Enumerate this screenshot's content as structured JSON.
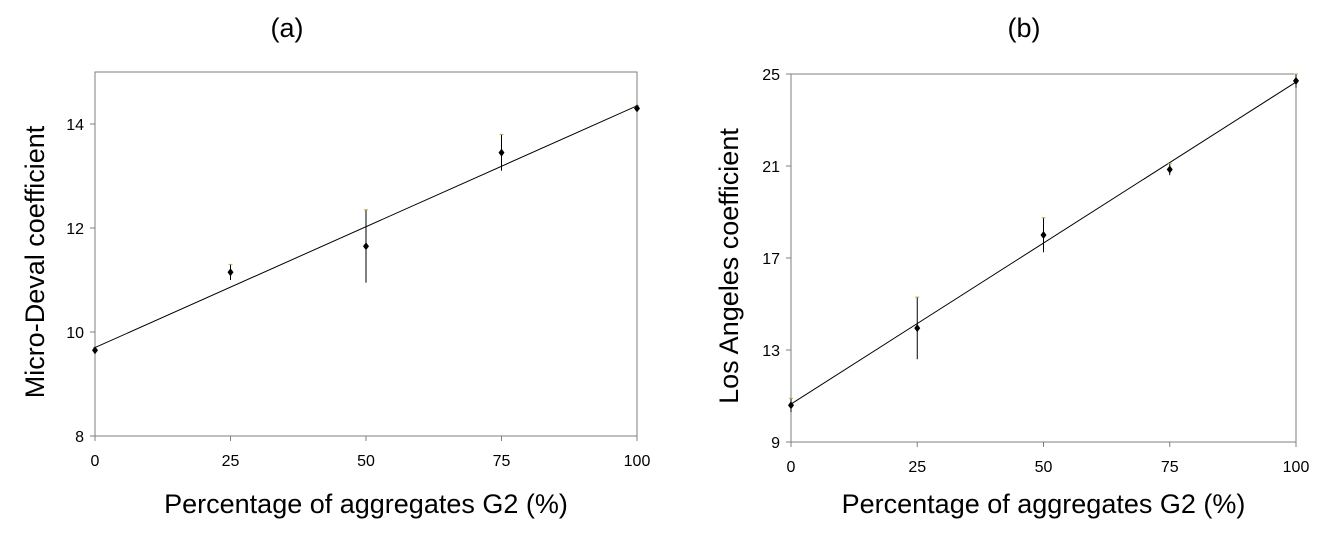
{
  "chart_data": [
    {
      "type": "scatter",
      "panel_label": "(a)",
      "xlabel": "Percentage of aggregates G2 (%)",
      "ylabel": "Micro-Deval coefficient",
      "xlim": [
        0,
        100
      ],
      "ylim": [
        8,
        15
      ],
      "xticks": [
        "0",
        "25",
        "50",
        "75",
        "100"
      ],
      "yticks": [
        "8",
        "10",
        "12",
        "14"
      ],
      "grid": false,
      "legend": "none",
      "points": [
        {
          "x": 0,
          "y": 9.65,
          "err": 0.05
        },
        {
          "x": 25,
          "y": 11.15,
          "err": 0.15
        },
        {
          "x": 50,
          "y": 11.65,
          "err": 0.7
        },
        {
          "x": 75,
          "y": 13.45,
          "err": 0.35
        },
        {
          "x": 100,
          "y": 14.3,
          "err": 0.05
        }
      ],
      "trendline": {
        "x": [
          0,
          100
        ],
        "y": [
          9.7,
          14.35
        ]
      }
    },
    {
      "type": "scatter",
      "panel_label": "(b)",
      "xlabel": "Percentage of aggregates G2 (%)",
      "ylabel": "Los Angeles coefficient",
      "xlim": [
        0,
        100
      ],
      "ylim": [
        9,
        25
      ],
      "xticks": [
        "0",
        "25",
        "50",
        "75",
        "100"
      ],
      "yticks": [
        "9",
        "13",
        "17",
        "21",
        "25"
      ],
      "grid": false,
      "legend": "none",
      "points": [
        {
          "x": 0,
          "y": 10.6,
          "err": 0.3
        },
        {
          "x": 25,
          "y": 13.95,
          "err": 1.35
        },
        {
          "x": 50,
          "y": 18.0,
          "err": 0.75
        },
        {
          "x": 75,
          "y": 20.85,
          "err": 0.25
        },
        {
          "x": 100,
          "y": 24.7,
          "err": 0.3
        }
      ],
      "trendline": {
        "x": [
          0,
          100
        ],
        "y": [
          10.65,
          24.65
        ]
      }
    }
  ]
}
